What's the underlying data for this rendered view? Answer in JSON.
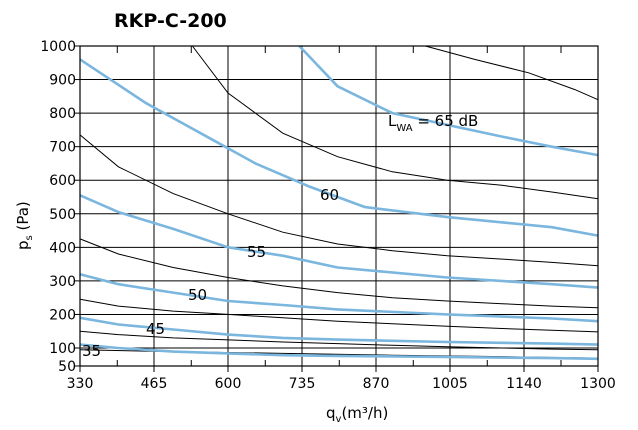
{
  "chart_data": {
    "type": "line",
    "title": "RKP-C-200",
    "xlabel": {
      "base": "q",
      "sub": "v",
      "rest": "(m³/h)"
    },
    "ylabel": {
      "base": "p",
      "sub": "s",
      "rest": " (Pa)"
    },
    "xlim": [
      330,
      1300
    ],
    "ylim": [
      50,
      1000
    ],
    "x_ticks": [
      330,
      465,
      600,
      735,
      870,
      1005,
      1140,
      1300
    ],
    "y_ticks": [
      50,
      100,
      200,
      300,
      400,
      500,
      600,
      700,
      800,
      900,
      1000
    ],
    "x_minor_ticks": [
      398,
      533,
      668,
      803,
      938,
      1073,
      1220
    ],
    "grid": true,
    "colors": {
      "sound_curve": "#7ab6de",
      "label_highlight": "#c8c8c8",
      "system_curve": "#000000",
      "grid": "#000000"
    },
    "sound_curves": [
      {
        "name": "35",
        "x": [
          330,
          400,
          500,
          600,
          700,
          800,
          1000,
          1200,
          1300
        ],
        "y": [
          110,
          100,
          90,
          85,
          80,
          78,
          75,
          72,
          70
        ]
      },
      {
        "name": "45",
        "x": [
          330,
          400,
          500,
          600,
          700,
          800,
          1000,
          1200,
          1300
        ],
        "y": [
          190,
          170,
          155,
          140,
          130,
          125,
          118,
          113,
          110
        ]
      },
      {
        "name": "50",
        "x": [
          330,
          400,
          500,
          600,
          700,
          800,
          1000,
          1200,
          1300
        ],
        "y": [
          320,
          290,
          265,
          240,
          228,
          215,
          200,
          188,
          180
        ]
      },
      {
        "name": "55",
        "x": [
          330,
          400,
          500,
          600,
          700,
          800,
          1000,
          1200,
          1300
        ],
        "y": [
          555,
          505,
          455,
          400,
          375,
          340,
          310,
          290,
          280
        ]
      },
      {
        "name": "60",
        "x": [
          330,
          450,
          550,
          650,
          750,
          850,
          1000,
          1200,
          1300
        ],
        "y": [
          960,
          830,
          740,
          650,
          580,
          520,
          490,
          460,
          435
        ]
      },
      {
        "name": "L_WA = 65 dB",
        "x": [
          730,
          800,
          900,
          1000,
          1100,
          1200,
          1300
        ],
        "y": [
          1000,
          880,
          800,
          765,
          730,
          700,
          675
        ]
      }
    ],
    "label_texts": {
      "l35": "35",
      "l45": "45",
      "l50": "50",
      "l55": "55",
      "l60": "60",
      "l65_base": "L",
      "l65_sub": "WA",
      "l65_rest": " = 65 dB"
    },
    "system_curves": [
      {
        "x": [
          535,
          600,
          700,
          800,
          900,
          1000,
          1100,
          1200,
          1300
        ],
        "y": [
          1000,
          860,
          740,
          670,
          625,
          600,
          585,
          565,
          545
        ]
      },
      {
        "x": [
          330,
          400,
          500,
          600,
          700,
          800,
          900,
          1000,
          1100,
          1200,
          1300
        ],
        "y": [
          735,
          640,
          560,
          500,
          445,
          410,
          390,
          375,
          365,
          355,
          345
        ]
      },
      {
        "x": [
          330,
          400,
          500,
          600,
          700,
          800,
          900,
          1000,
          1100,
          1200,
          1300
        ],
        "y": [
          425,
          380,
          340,
          310,
          285,
          265,
          250,
          240,
          232,
          225,
          220
        ]
      },
      {
        "x": [
          330,
          400,
          500,
          600,
          700,
          800,
          900,
          1000,
          1100,
          1200,
          1300
        ],
        "y": [
          245,
          225,
          210,
          200,
          190,
          180,
          172,
          165,
          158,
          153,
          148
        ]
      },
      {
        "x": [
          330,
          400,
          500,
          600,
          700,
          800,
          900,
          1000,
          1100,
          1200,
          1300
        ],
        "y": [
          150,
          140,
          130,
          124,
          118,
          113,
          108,
          104,
          100,
          97,
          95
        ]
      },
      {
        "x": [
          330,
          500,
          700,
          900,
          1100,
          1300
        ],
        "y": [
          95,
          90,
          85,
          80,
          76,
          72
        ]
      },
      {
        "x": [
          960,
          1050,
          1150,
          1250,
          1300
        ],
        "y": [
          1000,
          960,
          920,
          870,
          840
        ]
      }
    ]
  }
}
